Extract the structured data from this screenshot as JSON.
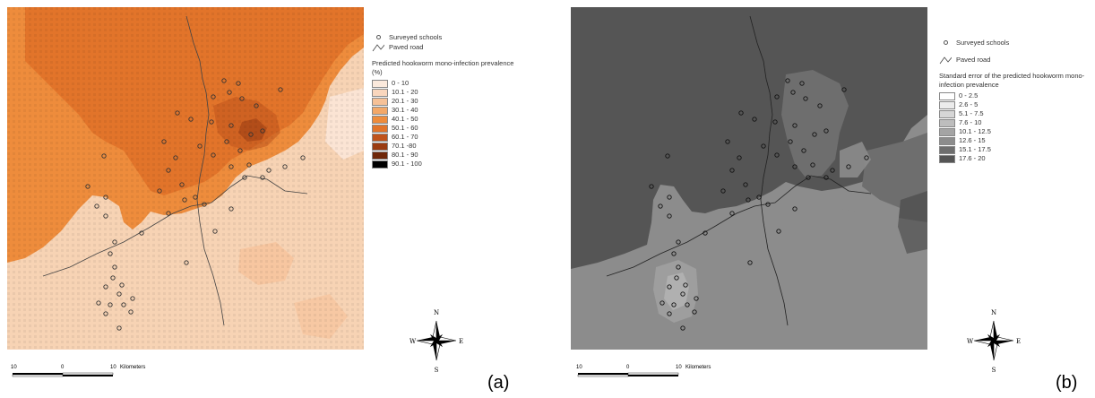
{
  "panels": [
    {
      "label": "(a)",
      "legend": {
        "schools": "Surveyed schools",
        "road": "Paved road",
        "title": "Predicted hookworm mono-infection prevalence  (%)",
        "classes": [
          {
            "label": "0 - 10",
            "color": "#fbe9dc"
          },
          {
            "label": "10.1 - 20",
            "color": "#f9d6bd"
          },
          {
            "label": "20.1 - 30",
            "color": "#f6c197"
          },
          {
            "label": "30.1 - 40",
            "color": "#f3a868"
          },
          {
            "label": "40.1 - 50",
            "color": "#ee8c3c"
          },
          {
            "label": "50.1 - 60",
            "color": "#e2742a"
          },
          {
            "label": "60.1 - 70",
            "color": "#c0531b"
          },
          {
            "label": "70.1 -80",
            "color": "#9a3c12"
          },
          {
            "label": "80.1 - 90",
            "color": "#6e2709"
          },
          {
            "label": "90.1 - 100",
            "color": "#000000"
          }
        ]
      },
      "scale": {
        "left": "10",
        "mid": "0",
        "right": "10",
        "unit": "Kilometers"
      },
      "compass": {
        "n": "N",
        "e": "E",
        "s": "S",
        "w": "W"
      }
    },
    {
      "label": "(b)",
      "legend": {
        "schools": "Surveyed schools",
        "road": "Paved road",
        "title": "Standard error of the predicted hookworm mono-infection prevalence",
        "classes": [
          {
            "label": "0 - 2.5",
            "color": "#ffffff"
          },
          {
            "label": "2.6 - 5",
            "color": "#ececec"
          },
          {
            "label": "5.1 - 7.5",
            "color": "#d6d6d6"
          },
          {
            "label": "7.6 - 10",
            "color": "#bdbdbd"
          },
          {
            "label": "10.1 - 12.5",
            "color": "#a4a4a4"
          },
          {
            "label": "12.6 - 15",
            "color": "#8c8c8c"
          },
          {
            "label": "15.1 - 17.5",
            "color": "#6e6e6e"
          },
          {
            "label": "17.6 - 20",
            "color": "#555555"
          }
        ]
      },
      "scale": {
        "left": "10",
        "mid": "0",
        "right": "10",
        "unit": "Kilometers"
      },
      "compass": {
        "n": "N",
        "e": "E",
        "s": "S",
        "w": "W"
      }
    }
  ]
}
